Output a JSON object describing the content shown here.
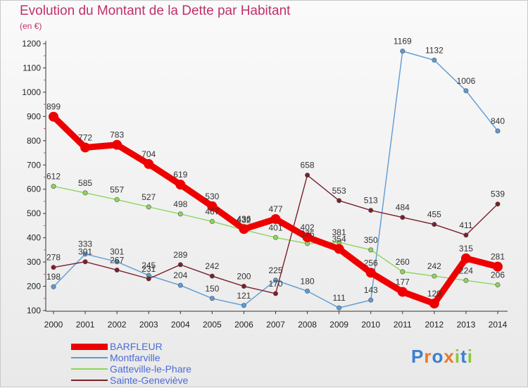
{
  "title": "Evolution du Montant de la Dette par Habitant",
  "unit": "(en €)",
  "logo": {
    "letters": [
      "P",
      "r",
      "o",
      "x",
      "i",
      "t",
      "i"
    ],
    "colors": [
      "#3a7fd0",
      "#e8792b",
      "#3a7fd0",
      "#e8792b",
      "#8cc63f",
      "#3a7fd0",
      "#8cc63f"
    ]
  },
  "chart_data": {
    "type": "line",
    "title": "Evolution du Montant de la Dette par Habitant",
    "ylabel": "(en €)",
    "xlabel": "",
    "x": [
      "2000",
      "2001",
      "2002",
      "2003",
      "2004",
      "2005",
      "2006",
      "2007",
      "2008",
      "2009",
      "2010",
      "2011",
      "2012",
      "2013",
      "2014"
    ],
    "ylim": [
      100,
      1200
    ],
    "yticks": [
      100,
      200,
      300,
      400,
      500,
      600,
      700,
      800,
      900,
      1000,
      1100,
      1200
    ],
    "grid": false,
    "legend_position": "bottom-left",
    "series": [
      {
        "name": "BARFLEUR",
        "color": "#ee0000",
        "values": [
          899,
          772,
          783,
          704,
          619,
          530,
          436,
          477,
          402,
          354,
          256,
          177,
          129,
          315,
          281
        ]
      },
      {
        "name": "Montfarville",
        "color": "#5b9bd5",
        "values": [
          198,
          333,
          301,
          245,
          204,
          150,
          121,
          225,
          180,
          111,
          143,
          1169,
          1132,
          1006,
          840
        ]
      },
      {
        "name": "Gatteville-le-Phare",
        "color": "#8cd65a",
        "values": [
          612,
          585,
          557,
          527,
          498,
          467,
          432,
          401,
          376,
          381,
          350,
          260,
          242,
          224,
          206
        ]
      },
      {
        "name": "Sainte-Geneviève",
        "color": "#7a1f2b",
        "values": [
          278,
          301,
          267,
          231,
          289,
          242,
          200,
          170,
          658,
          553,
          513,
          484,
          455,
          411,
          539
        ]
      }
    ]
  }
}
